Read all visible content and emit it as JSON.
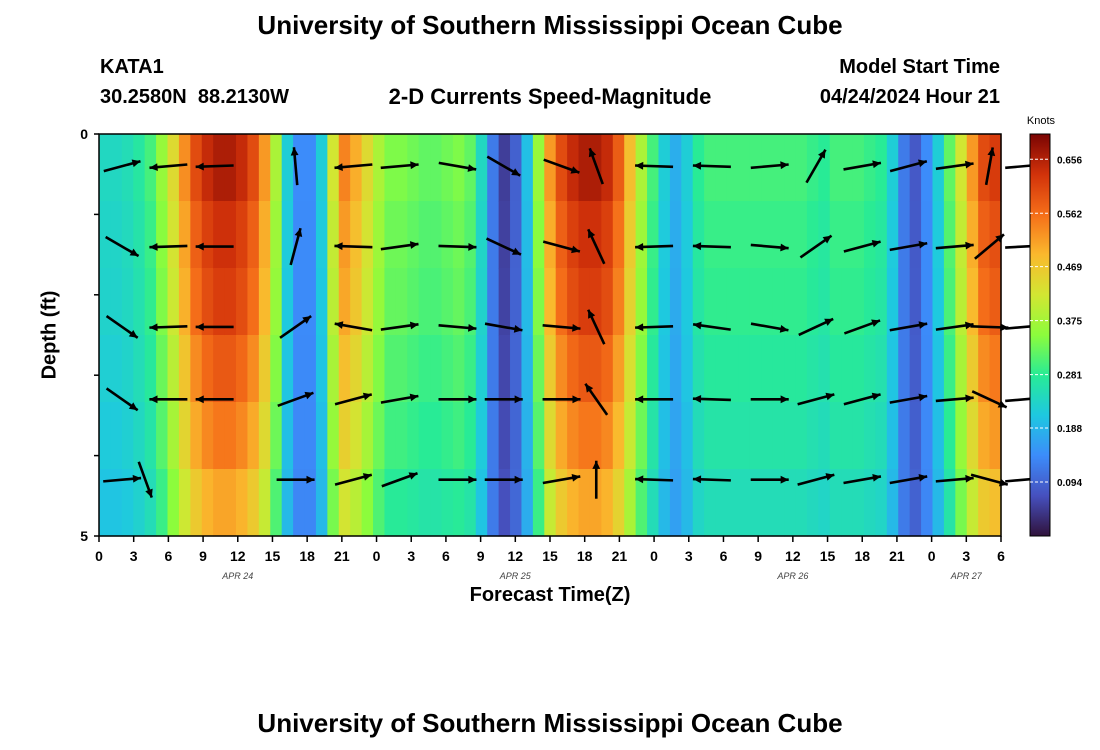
{
  "header": {
    "title": "University of Southern Mississippi Ocean Cube",
    "station_id": "KATA1",
    "station_coords": "30.2580N  88.2130W",
    "plot_title": "2-D Currents Speed-Magnitude",
    "model_start_label": "Model Start Time",
    "model_start_value": "04/24/2024 Hour 21"
  },
  "footer": {
    "title": "University of Southern Mississippi Ocean Cube"
  },
  "chart_data": {
    "type": "heatmap",
    "title": "2-D Currents Speed-Magnitude",
    "xlabel": "Forecast Time(Z)",
    "ylabel": "Depth (ft)",
    "y_ticks": [
      "0",
      "5"
    ],
    "ylim": [
      0,
      5
    ],
    "x_tick_labels": [
      "0",
      "3",
      "6",
      "9",
      "12",
      "15",
      "18",
      "21",
      "0",
      "3",
      "6",
      "9",
      "12",
      "15",
      "18",
      "21",
      "0",
      "3",
      "6",
      "9",
      "12",
      "15",
      "18",
      "21",
      "0",
      "3",
      "6"
    ],
    "date_labels": [
      {
        "label": "APR 24",
        "hour_index": 12
      },
      {
        "label": "APR 25",
        "hour_index": 36
      },
      {
        "label": "APR 26",
        "hour_index": 60
      },
      {
        "label": "APR 27",
        "hour_index": 75
      }
    ],
    "colorbar": {
      "label": "Knots",
      "ticks": [
        "0.656",
        "0.562",
        "0.469",
        "0.375",
        "0.281",
        "0.188",
        "0.094"
      ],
      "min": 0.0,
      "max": 0.7
    },
    "column_hours": [
      0,
      1,
      2,
      3,
      4,
      5,
      6,
      7,
      8,
      9,
      10,
      11,
      12,
      13,
      14,
      15,
      16,
      17,
      18,
      19,
      20,
      21,
      22,
      23,
      24,
      25,
      26,
      27,
      28,
      29,
      30,
      31,
      32,
      33,
      34,
      35,
      36,
      37,
      38,
      39,
      40,
      41,
      42,
      43,
      44,
      45,
      46,
      47,
      48,
      49,
      50,
      51,
      52,
      53,
      54,
      55,
      56,
      57,
      58,
      59,
      60,
      61,
      62,
      63,
      64,
      65,
      66,
      67,
      68,
      69,
      70,
      71,
      72,
      73,
      74,
      75,
      76,
      77,
      78
    ],
    "surface_speed": [
      0.24,
      0.24,
      0.25,
      0.27,
      0.3,
      0.36,
      0.44,
      0.53,
      0.6,
      0.64,
      0.66,
      0.66,
      0.64,
      0.6,
      0.52,
      0.38,
      0.22,
      0.14,
      0.14,
      0.22,
      0.42,
      0.54,
      0.5,
      0.44,
      0.38,
      0.34,
      0.34,
      0.33,
      0.32,
      0.32,
      0.33,
      0.34,
      0.32,
      0.24,
      0.12,
      0.05,
      0.09,
      0.2,
      0.36,
      0.52,
      0.6,
      0.64,
      0.66,
      0.66,
      0.64,
      0.58,
      0.48,
      0.38,
      0.3,
      0.22,
      0.18,
      0.22,
      0.28,
      0.3,
      0.3,
      0.3,
      0.3,
      0.3,
      0.3,
      0.3,
      0.3,
      0.3,
      0.29,
      0.28,
      0.3,
      0.3,
      0.3,
      0.29,
      0.28,
      0.22,
      0.12,
      0.08,
      0.14,
      0.22,
      0.32,
      0.42,
      0.52,
      0.6,
      0.62
    ],
    "depth_factor": [
      1.0,
      0.95,
      0.92,
      0.86,
      0.8,
      0.72
    ],
    "vectors": [
      {
        "hour": 2,
        "depth": 0.4,
        "angle": -15
      },
      {
        "hour": 6,
        "depth": 0.4,
        "angle": 175
      },
      {
        "hour": 10,
        "depth": 0.4,
        "angle": 178
      },
      {
        "hour": 17,
        "depth": 0.4,
        "angle": -95
      },
      {
        "hour": 22,
        "depth": 0.4,
        "angle": 175
      },
      {
        "hour": 26,
        "depth": 0.4,
        "angle": -5
      },
      {
        "hour": 31,
        "depth": 0.4,
        "angle": 10
      },
      {
        "hour": 35,
        "depth": 0.4,
        "angle": 30
      },
      {
        "hour": 40,
        "depth": 0.4,
        "angle": 20
      },
      {
        "hour": 43,
        "depth": 0.4,
        "angle": -110
      },
      {
        "hour": 48,
        "depth": 0.4,
        "angle": -178
      },
      {
        "hour": 53,
        "depth": 0.4,
        "angle": -178
      },
      {
        "hour": 58,
        "depth": 0.4,
        "angle": -5
      },
      {
        "hour": 62,
        "depth": 0.4,
        "angle": -60
      },
      {
        "hour": 66,
        "depth": 0.4,
        "angle": -10
      },
      {
        "hour": 70,
        "depth": 0.4,
        "angle": -15
      },
      {
        "hour": 74,
        "depth": 0.4,
        "angle": -8
      },
      {
        "hour": 77,
        "depth": 0.4,
        "angle": -80
      },
      {
        "hour": 80,
        "depth": 0.4,
        "angle": -5
      },
      {
        "hour": 2,
        "depth": 1.4,
        "angle": 30
      },
      {
        "hour": 6,
        "depth": 1.4,
        "angle": 178
      },
      {
        "hour": 10,
        "depth": 1.4,
        "angle": 180
      },
      {
        "hour": 17,
        "depth": 1.4,
        "angle": -75
      },
      {
        "hour": 22,
        "depth": 1.4,
        "angle": -178
      },
      {
        "hour": 26,
        "depth": 1.4,
        "angle": -8
      },
      {
        "hour": 31,
        "depth": 1.4,
        "angle": 2
      },
      {
        "hour": 35,
        "depth": 1.4,
        "angle": 25
      },
      {
        "hour": 40,
        "depth": 1.4,
        "angle": 15
      },
      {
        "hour": 43,
        "depth": 1.4,
        "angle": -115
      },
      {
        "hour": 48,
        "depth": 1.4,
        "angle": 178
      },
      {
        "hour": 53,
        "depth": 1.4,
        "angle": -178
      },
      {
        "hour": 58,
        "depth": 1.4,
        "angle": 5
      },
      {
        "hour": 62,
        "depth": 1.4,
        "angle": -35
      },
      {
        "hour": 66,
        "depth": 1.4,
        "angle": -15
      },
      {
        "hour": 70,
        "depth": 1.4,
        "angle": -10
      },
      {
        "hour": 74,
        "depth": 1.4,
        "angle": -5
      },
      {
        "hour": 77,
        "depth": 1.4,
        "angle": -40
      },
      {
        "hour": 80,
        "depth": 1.4,
        "angle": -3
      },
      {
        "hour": 2,
        "depth": 2.4,
        "angle": 35
      },
      {
        "hour": 6,
        "depth": 2.4,
        "angle": 178
      },
      {
        "hour": 10,
        "depth": 2.4,
        "angle": 180
      },
      {
        "hour": 17,
        "depth": 2.4,
        "angle": -35
      },
      {
        "hour": 22,
        "depth": 2.4,
        "angle": -170
      },
      {
        "hour": 26,
        "depth": 2.4,
        "angle": -8
      },
      {
        "hour": 31,
        "depth": 2.4,
        "angle": 5
      },
      {
        "hour": 35,
        "depth": 2.4,
        "angle": 10
      },
      {
        "hour": 40,
        "depth": 2.4,
        "angle": 5
      },
      {
        "hour": 43,
        "depth": 2.4,
        "angle": -115
      },
      {
        "hour": 48,
        "depth": 2.4,
        "angle": 178
      },
      {
        "hour": 53,
        "depth": 2.4,
        "angle": -172
      },
      {
        "hour": 58,
        "depth": 2.4,
        "angle": 10
      },
      {
        "hour": 62,
        "depth": 2.4,
        "angle": -25
      },
      {
        "hour": 66,
        "depth": 2.4,
        "angle": -20
      },
      {
        "hour": 70,
        "depth": 2.4,
        "angle": -10
      },
      {
        "hour": 74,
        "depth": 2.4,
        "angle": -8
      },
      {
        "hour": 77,
        "depth": 2.4,
        "angle": 2
      },
      {
        "hour": 80,
        "depth": 2.4,
        "angle": -5
      },
      {
        "hour": 2,
        "depth": 3.3,
        "angle": 35
      },
      {
        "hour": 6,
        "depth": 3.3,
        "angle": 180
      },
      {
        "hour": 10,
        "depth": 3.3,
        "angle": 180
      },
      {
        "hour": 17,
        "depth": 3.3,
        "angle": -20
      },
      {
        "hour": 22,
        "depth": 3.3,
        "angle": -15
      },
      {
        "hour": 26,
        "depth": 3.3,
        "angle": -10
      },
      {
        "hour": 31,
        "depth": 3.3,
        "angle": 0
      },
      {
        "hour": 35,
        "depth": 3.3,
        "angle": 0
      },
      {
        "hour": 40,
        "depth": 3.3,
        "angle": 0
      },
      {
        "hour": 43,
        "depth": 3.3,
        "angle": -125
      },
      {
        "hour": 48,
        "depth": 3.3,
        "angle": 180
      },
      {
        "hour": 53,
        "depth": 3.3,
        "angle": -178
      },
      {
        "hour": 58,
        "depth": 3.3,
        "angle": 0
      },
      {
        "hour": 62,
        "depth": 3.3,
        "angle": -15
      },
      {
        "hour": 66,
        "depth": 3.3,
        "angle": -15
      },
      {
        "hour": 70,
        "depth": 3.3,
        "angle": -10
      },
      {
        "hour": 74,
        "depth": 3.3,
        "angle": -5
      },
      {
        "hour": 77,
        "depth": 3.3,
        "angle": 25
      },
      {
        "hour": 80,
        "depth": 3.3,
        "angle": -5
      },
      {
        "hour": 2,
        "depth": 4.3,
        "angle": -5
      },
      {
        "hour": 4,
        "depth": 4.3,
        "angle": 70
      },
      {
        "hour": 17,
        "depth": 4.3,
        "angle": 0
      },
      {
        "hour": 22,
        "depth": 4.3,
        "angle": -15
      },
      {
        "hour": 26,
        "depth": 4.3,
        "angle": -20
      },
      {
        "hour": 31,
        "depth": 4.3,
        "angle": 0
      },
      {
        "hour": 35,
        "depth": 4.3,
        "angle": 0
      },
      {
        "hour": 40,
        "depth": 4.3,
        "angle": -10
      },
      {
        "hour": 43,
        "depth": 4.3,
        "angle": -90
      },
      {
        "hour": 48,
        "depth": 4.3,
        "angle": -178
      },
      {
        "hour": 53,
        "depth": 4.3,
        "angle": -178
      },
      {
        "hour": 58,
        "depth": 4.3,
        "angle": 0
      },
      {
        "hour": 62,
        "depth": 4.3,
        "angle": -15
      },
      {
        "hour": 66,
        "depth": 4.3,
        "angle": -10
      },
      {
        "hour": 70,
        "depth": 4.3,
        "angle": -10
      },
      {
        "hour": 74,
        "depth": 4.3,
        "angle": -5
      },
      {
        "hour": 77,
        "depth": 4.3,
        "angle": 15
      },
      {
        "hour": 80,
        "depth": 4.3,
        "angle": -5
      }
    ]
  }
}
